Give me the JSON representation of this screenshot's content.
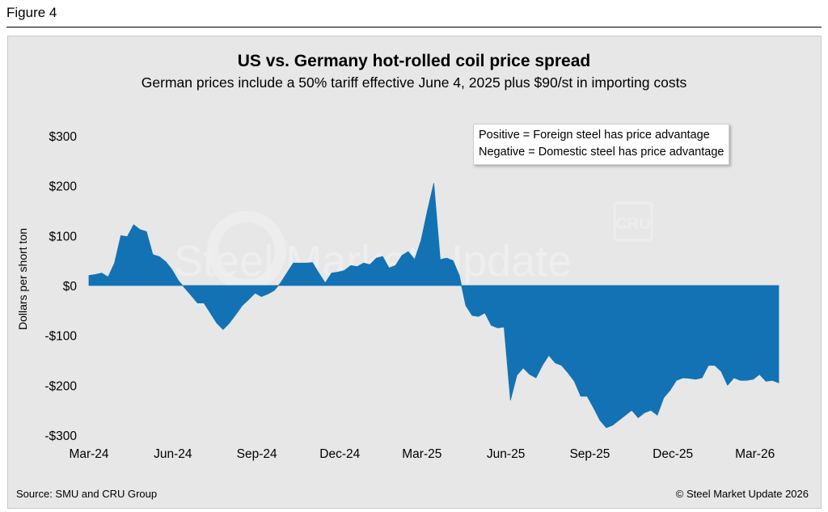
{
  "figure_label": "Figure 4",
  "source": "Source: SMU and CRU Group",
  "copyright": "© Steel Market Update 2026",
  "watermark": {
    "text": "Steel Market Update",
    "logo": "CRU"
  },
  "colors": {
    "area": "#1272b4",
    "background": "#e7e7e7"
  },
  "chart_data": {
    "type": "area",
    "title": "US vs. Germany hot-rolled coil price spread",
    "subtitle": "German prices include a 50% tariff effective June 4, 2025 plus $90/st in importing costs",
    "ylabel": "Dollars per short ton",
    "xlabel": "",
    "legend": [
      "Positive = Foreign steel has price advantage",
      "Negative = Domestic steel has price advantage"
    ],
    "legend_position": "top-right",
    "ylim": [
      -300,
      300
    ],
    "y_ticks": [
      300,
      200,
      100,
      0,
      -100,
      -200,
      -300
    ],
    "y_tick_labels": [
      "$300",
      "$200",
      "$100",
      "$0",
      "-$100",
      "-$200",
      "-$300"
    ],
    "x_tick_labels": [
      "Mar-24",
      "Jun-24",
      "Sep-24",
      "Dec-24",
      "Mar-25",
      "Jun-25",
      "Sep-25",
      "Dec-25",
      "Mar-26"
    ],
    "x_tick_dates": [
      "2024-03-01",
      "2024-06-01",
      "2024-09-01",
      "2024-12-01",
      "2025-03-01",
      "2025-06-01",
      "2025-09-01",
      "2025-12-01",
      "2026-03-01"
    ],
    "grid": false,
    "x": [
      "2024-03-01",
      "2024-03-08",
      "2024-03-15",
      "2024-03-22",
      "2024-03-29",
      "2024-04-05",
      "2024-04-12",
      "2024-04-19",
      "2024-04-26",
      "2024-05-03",
      "2024-05-10",
      "2024-05-17",
      "2024-05-24",
      "2024-05-31",
      "2024-06-07",
      "2024-06-14",
      "2024-06-21",
      "2024-06-28",
      "2024-07-05",
      "2024-07-12",
      "2024-07-19",
      "2024-07-26",
      "2024-08-02",
      "2024-08-09",
      "2024-08-16",
      "2024-08-23",
      "2024-08-30",
      "2024-09-06",
      "2024-09-13",
      "2024-09-20",
      "2024-09-27",
      "2024-10-04",
      "2024-10-11",
      "2024-10-18",
      "2024-10-25",
      "2024-11-01",
      "2024-11-08",
      "2024-11-15",
      "2024-11-22",
      "2024-11-29",
      "2024-12-06",
      "2024-12-13",
      "2024-12-20",
      "2024-12-27",
      "2025-01-03",
      "2025-01-10",
      "2025-01-17",
      "2025-01-24",
      "2025-01-31",
      "2025-02-07",
      "2025-02-14",
      "2025-02-21",
      "2025-02-28",
      "2025-03-07",
      "2025-03-14",
      "2025-03-21",
      "2025-03-28",
      "2025-04-04",
      "2025-04-11",
      "2025-04-18",
      "2025-04-25",
      "2025-05-02",
      "2025-05-09",
      "2025-05-16",
      "2025-05-23",
      "2025-05-30",
      "2025-06-06",
      "2025-06-13",
      "2025-06-20",
      "2025-06-27",
      "2025-07-04",
      "2025-07-11",
      "2025-07-18",
      "2025-07-25",
      "2025-08-01",
      "2025-08-08",
      "2025-08-15",
      "2025-08-22",
      "2025-08-29",
      "2025-09-05",
      "2025-09-12",
      "2025-09-19",
      "2025-09-26",
      "2025-10-03",
      "2025-10-10",
      "2025-10-17",
      "2025-10-24",
      "2025-10-31",
      "2025-11-07",
      "2025-11-14",
      "2025-11-21",
      "2025-11-28",
      "2025-12-05",
      "2025-12-12",
      "2025-12-19",
      "2025-12-26",
      "2026-01-02",
      "2026-01-09",
      "2026-01-16",
      "2026-01-23",
      "2026-01-30",
      "2026-02-06",
      "2026-02-13",
      "2026-02-20",
      "2026-02-27",
      "2026-03-06",
      "2026-03-13",
      "2026-03-20",
      "2026-03-27"
    ],
    "series": [
      {
        "values": [
          20,
          22,
          25,
          17,
          45,
          100,
          98,
          122,
          112,
          108,
          62,
          58,
          48,
          32,
          10,
          -5,
          -20,
          -35,
          -35,
          -55,
          -75,
          -88,
          -75,
          -58,
          -40,
          -28,
          -15,
          -22,
          -17,
          -10,
          5,
          25,
          45,
          45,
          45,
          46,
          25,
          5,
          25,
          27,
          30,
          40,
          38,
          45,
          42,
          55,
          58,
          35,
          40,
          60,
          68,
          52,
          90,
          150,
          205,
          52,
          55,
          50,
          20,
          -40,
          -60,
          -62,
          -55,
          -80,
          -85,
          -83,
          -230,
          -180,
          -165,
          -178,
          -185,
          -160,
          -140,
          -155,
          -160,
          -175,
          -192,
          -222,
          -222,
          -245,
          -270,
          -285,
          -280,
          -270,
          -260,
          -250,
          -265,
          -255,
          -250,
          -260,
          -225,
          -210,
          -190,
          -185,
          -186,
          -188,
          -185,
          -160,
          -160,
          -172,
          -200,
          -185,
          -190,
          -190,
          -188,
          -178,
          -192,
          -190,
          -195
        ]
      }
    ]
  }
}
